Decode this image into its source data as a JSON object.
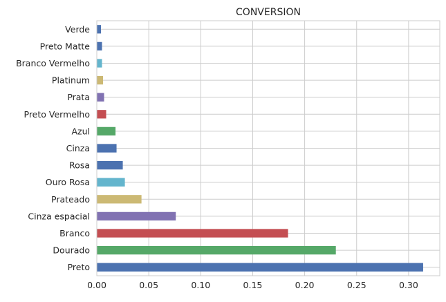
{
  "chart_data": {
    "type": "bar",
    "orientation": "horizontal",
    "title": "CONVERSION",
    "xlabel": "",
    "ylabel": "",
    "xlim": [
      0,
      0.33
    ],
    "xticks": [
      "0.00",
      "0.05",
      "0.10",
      "0.15",
      "0.20",
      "0.25",
      "0.30"
    ],
    "xtick_values": [
      0,
      0.05,
      0.1,
      0.15,
      0.2,
      0.25,
      0.3
    ],
    "grid": true,
    "legend": "none",
    "categories": [
      "Verde",
      "Preto Matte",
      "Branco Vermelho",
      "Platinum",
      "Prata",
      "Preto Vermelho",
      "Azul",
      "Cinza",
      "Rosa",
      "Ouro Rosa",
      "Prateado",
      "Cinza espacial",
      "Branco",
      "Dourado",
      "Preto"
    ],
    "values": [
      0.004,
      0.005,
      0.005,
      0.006,
      0.007,
      0.009,
      0.018,
      0.019,
      0.025,
      0.027,
      0.043,
      0.076,
      0.184,
      0.23,
      0.314
    ],
    "colors": [
      "#4c72b0",
      "#4c72b0",
      "#64b5cd",
      "#ccb974",
      "#8172b2",
      "#c44e52",
      "#55a868",
      "#4c72b0",
      "#4c72b0",
      "#64b5cd",
      "#ccb974",
      "#8172b2",
      "#c44e52",
      "#55a868",
      "#4c72b0"
    ]
  }
}
